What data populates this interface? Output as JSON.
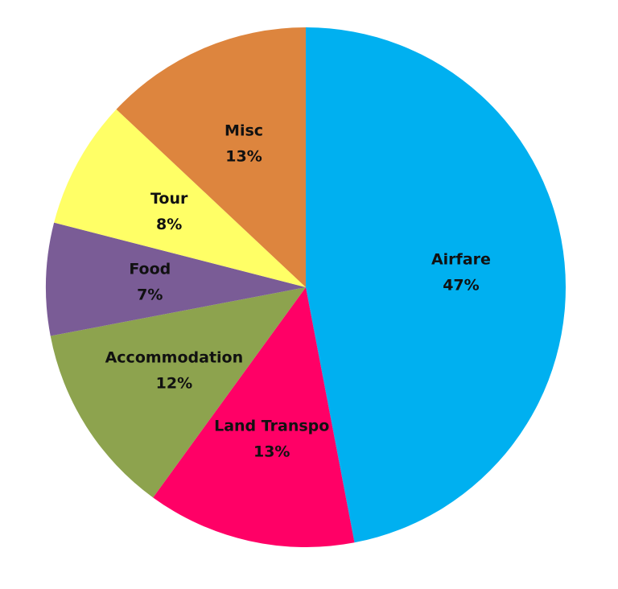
{
  "chart_data": {
    "type": "pie",
    "categories": [
      "Airfare",
      "Land Transpo",
      "Accommodation",
      "Food",
      "Tour",
      "Misc"
    ],
    "values": [
      47,
      13,
      12,
      7,
      8,
      13
    ],
    "value_labels": [
      "47%",
      "13%",
      "12%",
      "7%",
      "8%",
      "13%"
    ],
    "colors": [
      "#00b0f0",
      "#ff0066",
      "#8da34e",
      "#7a5c96",
      "#ffff66",
      "#dd853e"
    ]
  }
}
